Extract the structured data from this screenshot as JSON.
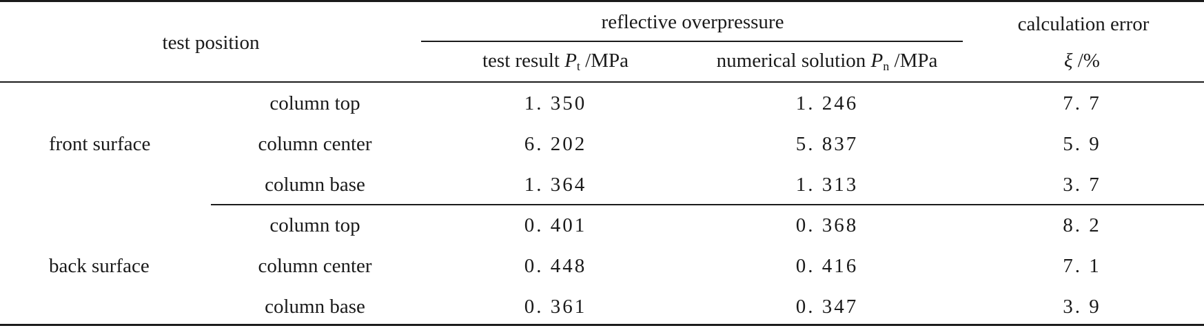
{
  "table": {
    "header": {
      "test_position": "test position",
      "reflective_overpressure": "reflective overpressure",
      "calculation_error": "calculation error",
      "test_result_prefix": "test result ",
      "test_result_symbol": "P",
      "test_result_sub": "t",
      "test_result_unit": " /MPa",
      "numerical_prefix": "numerical solution ",
      "numerical_symbol": "P",
      "numerical_sub": "n",
      "numerical_unit": " /MPa",
      "error_symbol": "ξ",
      "error_unit": " /%"
    },
    "groups": [
      {
        "surface": "front surface",
        "rows": [
          {
            "position": "column top",
            "test": "1. 350",
            "numerical": "1. 246",
            "error": "7. 7"
          },
          {
            "position": "column center",
            "test": "6. 202",
            "numerical": "5. 837",
            "error": "5. 9"
          },
          {
            "position": "column base",
            "test": "1. 364",
            "numerical": "1. 313",
            "error": "3. 7"
          }
        ]
      },
      {
        "surface": "back surface",
        "rows": [
          {
            "position": "column top",
            "test": "0. 401",
            "numerical": "0. 368",
            "error": "8. 2"
          },
          {
            "position": "column center",
            "test": "0. 448",
            "numerical": "0. 416",
            "error": "7. 1"
          },
          {
            "position": "column base",
            "test": "0. 361",
            "numerical": "0. 347",
            "error": "3. 9"
          }
        ]
      }
    ]
  }
}
